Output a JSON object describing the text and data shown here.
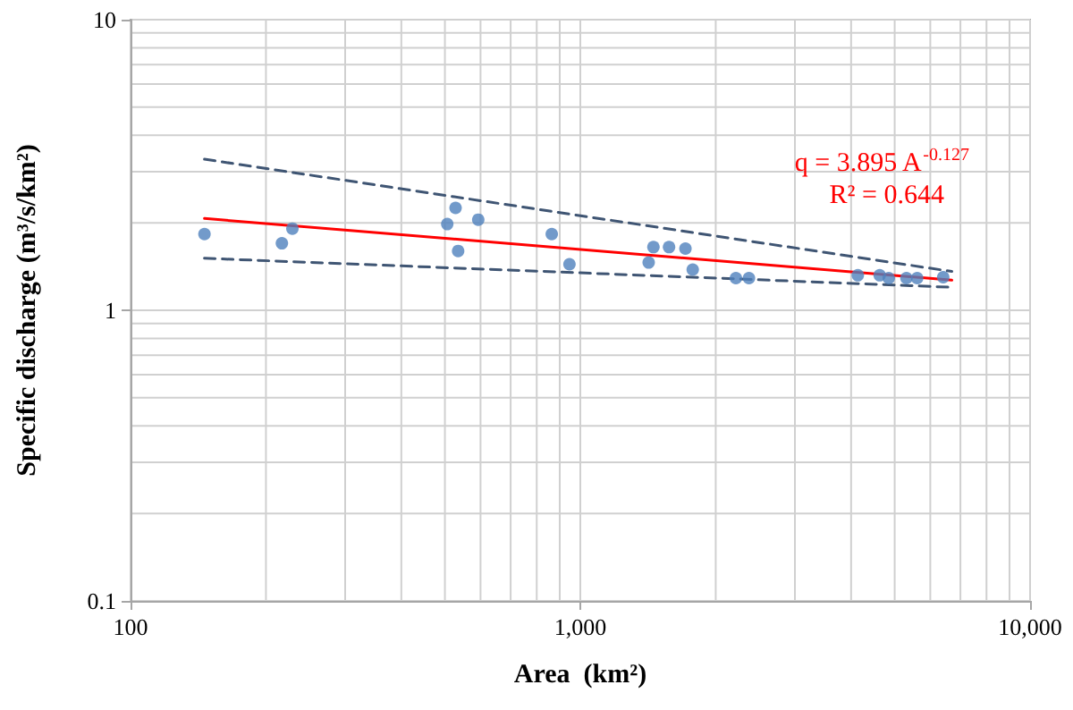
{
  "chart_data": {
    "type": "scatter",
    "xlabel": "Area  (km²)",
    "ylabel": "Specific discharge (m³/s/km²)",
    "annotations": [
      "q = 3.895 A$^{-0.127}$",
      "R² = 0.644"
    ],
    "log": "xy",
    "grid": true,
    "xlim": [
      100,
      10000
    ],
    "ylim": [
      0.1,
      10
    ],
    "xticks": [
      100,
      {
        "value": 200,
        "label": null
      },
      {
        "value": 300,
        "label": null
      },
      {
        "value": 400,
        "label": null
      },
      {
        "value": 500,
        "label": null
      },
      {
        "value": 600,
        "label": null
      },
      {
        "value": 700,
        "label": null
      },
      {
        "value": 800,
        "label": null
      },
      {
        "value": 900,
        "label": null
      },
      {
        "value": 1000,
        "label": "1,000"
      },
      {
        "value": 2000,
        "label": null
      },
      {
        "value": 3000,
        "label": null
      },
      {
        "value": 4000,
        "label": null
      },
      {
        "value": 5000,
        "label": null
      },
      {
        "value": 6000,
        "label": null
      },
      {
        "value": 7000,
        "label": null
      },
      {
        "value": 8000,
        "label": null
      },
      {
        "value": 9000,
        "label": null
      },
      {
        "value": 10000,
        "label": "10,000"
      }
    ],
    "yticks": [
      0.1,
      {
        "value": 0.2,
        "label": null
      },
      {
        "value": 0.3,
        "label": null
      },
      {
        "value": 0.4,
        "label": null
      },
      {
        "value": 0.5,
        "label": null
      },
      {
        "value": 0.6,
        "label": null
      },
      {
        "value": 0.7,
        "label": null
      },
      {
        "value": 0.8,
        "label": null
      },
      {
        "value": 0.9,
        "label": null
      },
      1,
      {
        "value": 2,
        "label": null
      },
      {
        "value": 3,
        "label": null
      },
      {
        "value": 4,
        "label": null
      },
      {
        "value": 5,
        "label": null
      },
      {
        "value": 6,
        "label": null
      },
      {
        "value": 7,
        "label": null
      },
      {
        "value": 8,
        "label": null
      },
      {
        "value": 9,
        "label": null
      },
      10
    ],
    "series": [
      {
        "type": "scatter",
        "color": "#4f81bd",
        "marker": "circle",
        "x": [
          146,
          217,
          229,
          506,
          528,
          535,
          593,
          864,
          946,
          1419,
          1454,
          1575,
          1713,
          1778,
          2218,
          2371,
          4140,
          4630,
          4850,
          5310,
          5610,
          6410
        ],
        "values": [
          1.83,
          1.7,
          1.91,
          1.98,
          2.25,
          1.6,
          2.05,
          1.83,
          1.44,
          1.46,
          1.65,
          1.65,
          1.63,
          1.38,
          1.29,
          1.29,
          1.32,
          1.32,
          1.29,
          1.29,
          1.29,
          1.3
        ]
      },
      {
        "type": "line",
        "color": "#ff0000",
        "marker": "none",
        "line_style": "solid",
        "x": [
          146,
          6700
        ],
        "values": [
          2.07,
          1.27
        ]
      },
      {
        "type": "line",
        "color": "#3f5573",
        "marker": "none",
        "line_style": "dashed",
        "x": [
          146,
          6700
        ],
        "values": [
          3.31,
          1.36
        ]
      },
      {
        "type": "line",
        "color": "#3f5573",
        "marker": "none",
        "line_style": "dashed",
        "x": [
          146,
          6700
        ],
        "values": [
          1.51,
          1.2
        ]
      }
    ]
  }
}
